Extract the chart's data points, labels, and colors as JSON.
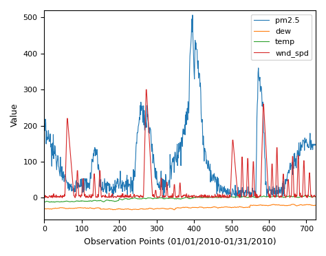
{
  "title": "",
  "xlabel": "Observation Points (01/01/2010-01/31/2010)",
  "ylabel": "Value",
  "ylim": [
    -60,
    520
  ],
  "xlim": [
    0,
    725
  ],
  "xticks": [
    0,
    100,
    200,
    300,
    400,
    500,
    600,
    700
  ],
  "yticks": [
    0,
    100,
    200,
    300,
    400,
    500
  ],
  "legend_labels": [
    "pm2.5",
    "dew",
    "temp",
    "wnd_spd"
  ],
  "colors": {
    "pm25": "#1f77b4",
    "dew": "#ff7f0e",
    "temp": "#2ca02c",
    "wnd_spd": "#d62728"
  },
  "linewidth": 0.8,
  "figsize": [
    4.74,
    3.72
  ],
  "dpi": 100,
  "seed": 0
}
